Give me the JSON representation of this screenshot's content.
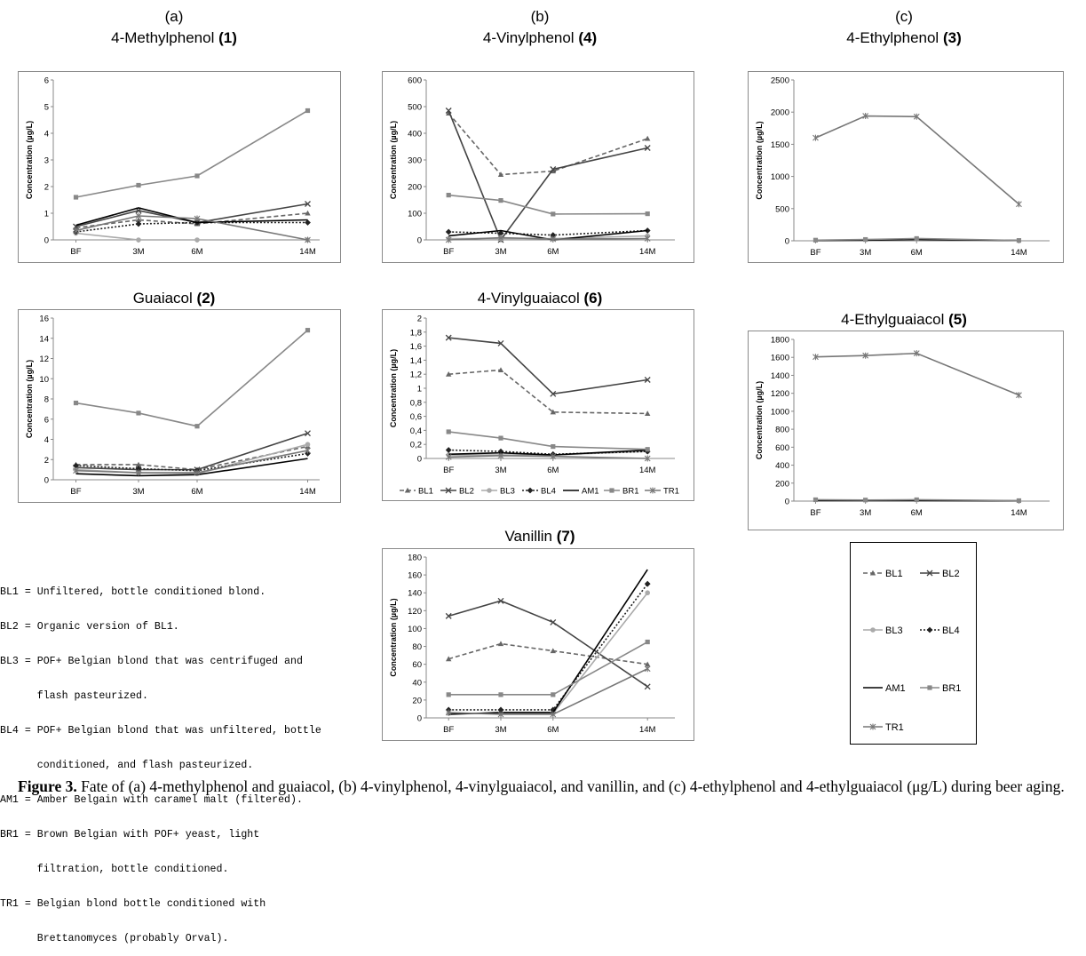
{
  "column_labels": [
    "(a)",
    "(b)",
    "(c)"
  ],
  "x_categories": [
    "BF",
    "3M",
    "6M",
    "14M"
  ],
  "y_label": "Concentration (µg/L)",
  "series_styles": {
    "BL1": {
      "color": "#666666",
      "dash": "5,3",
      "marker": "triangle"
    },
    "BL2": {
      "color": "#444444",
      "dash": "",
      "marker": "x"
    },
    "BL3": {
      "color": "#aaaaaa",
      "dash": "",
      "marker": "circle"
    },
    "BL4": {
      "color": "#222222",
      "dash": "2,2",
      "marker": "diamond"
    },
    "AM1": {
      "color": "#000000",
      "dash": "",
      "marker": "none"
    },
    "BR1": {
      "color": "#888888",
      "dash": "",
      "marker": "square"
    },
    "TR1": {
      "color": "#777777",
      "dash": "",
      "marker": "star"
    }
  },
  "legend": {
    "bottom_strip": [
      "BL1",
      "BL2",
      "BL3",
      "BL4",
      "AM1",
      "BR1",
      "TR1"
    ],
    "box": [
      "BL1",
      "BL2",
      "BL3",
      "BL4",
      "AM1",
      "BR1",
      "TR1"
    ]
  },
  "chart_data": [
    {
      "id": "c4mp",
      "type": "line",
      "title_name": "4-Methylphenol",
      "title_num": "(1)",
      "x": [
        "BF",
        "3M",
        "6M",
        "14M"
      ],
      "ylim": [
        0,
        6
      ],
      "yticks": [
        0,
        1,
        2,
        3,
        4,
        5,
        6
      ],
      "series": [
        {
          "name": "BL1",
          "values": [
            0.45,
            0.75,
            0.6,
            1.0
          ]
        },
        {
          "name": "BL2",
          "values": [
            0.5,
            1.1,
            0.65,
            1.35
          ]
        },
        {
          "name": "BL3",
          "values": [
            0.25,
            0.0,
            0.0,
            0.0
          ]
        },
        {
          "name": "BL4",
          "values": [
            0.3,
            0.6,
            0.65,
            0.65
          ]
        },
        {
          "name": "AM1",
          "values": [
            0.55,
            1.2,
            0.65,
            0.75
          ]
        },
        {
          "name": "BR1",
          "values": [
            1.6,
            2.05,
            2.4,
            4.85
          ]
        },
        {
          "name": "TR1",
          "values": [
            0.35,
            0.9,
            0.8,
            0.0
          ]
        }
      ]
    },
    {
      "id": "cgua",
      "type": "line",
      "title_name": "Guaiacol",
      "title_num": "(2)",
      "x": [
        "BF",
        "3M",
        "6M",
        "14M"
      ],
      "ylim": [
        0,
        16
      ],
      "yticks": [
        0,
        2,
        4,
        6,
        8,
        10,
        12,
        14,
        16
      ],
      "series": [
        {
          "name": "BL1",
          "values": [
            1.5,
            1.5,
            1.0,
            3.3
          ]
        },
        {
          "name": "BL2",
          "values": [
            1.2,
            1.0,
            1.0,
            4.6
          ]
        },
        {
          "name": "BL3",
          "values": [
            1.0,
            0.7,
            0.6,
            3.5
          ]
        },
        {
          "name": "BL4",
          "values": [
            1.4,
            1.1,
            0.9,
            2.6
          ]
        },
        {
          "name": "AM1",
          "values": [
            0.6,
            0.4,
            0.5,
            2.1
          ]
        },
        {
          "name": "BR1",
          "values": [
            7.6,
            6.6,
            5.3,
            14.8
          ]
        },
        {
          "name": "TR1",
          "values": [
            0.9,
            0.7,
            0.7,
            2.9
          ]
        }
      ]
    },
    {
      "id": "c4vp",
      "type": "line",
      "title_name": "4-Vinylphenol",
      "title_num": "(4)",
      "x": [
        "BF",
        "3M",
        "6M",
        "14M"
      ],
      "ylim": [
        0,
        600
      ],
      "yticks": [
        0,
        100,
        200,
        300,
        400,
        500,
        600
      ],
      "series": [
        {
          "name": "BL1",
          "values": [
            475,
            245,
            258,
            380
          ]
        },
        {
          "name": "BL2",
          "values": [
            485,
            0,
            265,
            345
          ]
        },
        {
          "name": "BL3",
          "values": [
            5,
            5,
            5,
            15
          ]
        },
        {
          "name": "BL4",
          "values": [
            30,
            25,
            18,
            35
          ]
        },
        {
          "name": "AM1",
          "values": [
            15,
            35,
            0,
            35
          ]
        },
        {
          "name": "BR1",
          "values": [
            168,
            148,
            97,
            98
          ]
        },
        {
          "name": "TR1",
          "values": [
            0,
            8,
            3,
            5
          ]
        }
      ]
    },
    {
      "id": "c4vg",
      "type": "line",
      "title_name": "4-Vinylguaiacol",
      "title_num": "(6)",
      "x": [
        "BF",
        "3M",
        "6M",
        "14M"
      ],
      "ylim": [
        0,
        2
      ],
      "yticks": [
        0,
        0.2,
        0.4,
        0.6,
        0.8,
        1.0,
        1.2,
        1.4,
        1.6,
        1.8,
        2.0
      ],
      "ytick_labels": [
        "0",
        "0,2",
        "0,4",
        "0,6",
        "0,8",
        "1",
        "1,2",
        "1,4",
        "1,6",
        "1,8",
        "2"
      ],
      "series": [
        {
          "name": "BL1",
          "values": [
            1.2,
            1.26,
            0.66,
            0.64
          ]
        },
        {
          "name": "BL2",
          "values": [
            1.72,
            1.64,
            0.92,
            1.12
          ]
        },
        {
          "name": "BL3",
          "values": [
            0.05,
            0.05,
            0.05,
            0.1
          ]
        },
        {
          "name": "BL4",
          "values": [
            0.12,
            0.1,
            0.06,
            0.1
          ]
        },
        {
          "name": "AM1",
          "values": [
            0.06,
            0.08,
            0.05,
            0.12
          ]
        },
        {
          "name": "BR1",
          "values": [
            0.38,
            0.29,
            0.17,
            0.13
          ]
        },
        {
          "name": "TR1",
          "values": [
            0.02,
            0.04,
            0.03,
            0.0
          ]
        }
      ]
    },
    {
      "id": "cvan",
      "type": "line",
      "title_name": "Vanillin",
      "title_num": "(7)",
      "x": [
        "BF",
        "3M",
        "6M",
        "14M"
      ],
      "ylim": [
        0,
        180
      ],
      "yticks": [
        0,
        20,
        40,
        60,
        80,
        100,
        120,
        140,
        160,
        180
      ],
      "series": [
        {
          "name": "BL1",
          "values": [
            66,
            83,
            75,
            60
          ]
        },
        {
          "name": "BL2",
          "values": [
            114,
            131,
            107,
            35
          ]
        },
        {
          "name": "BL3",
          "values": [
            5,
            5,
            5,
            140
          ]
        },
        {
          "name": "BL4",
          "values": [
            9,
            9,
            9,
            150
          ]
        },
        {
          "name": "AM1",
          "values": [
            4,
            6,
            6,
            166
          ]
        },
        {
          "name": "BR1",
          "values": [
            26,
            26,
            26,
            85
          ]
        },
        {
          "name": "TR1",
          "values": [
            6,
            4,
            4,
            55
          ]
        }
      ]
    },
    {
      "id": "c4ep",
      "type": "line",
      "title_name": "4-Ethylphenol",
      "title_num": "(3)",
      "x": [
        "BF",
        "3M",
        "6M",
        "14M"
      ],
      "ylim": [
        0,
        2500
      ],
      "yticks": [
        0,
        500,
        1000,
        1500,
        2000,
        2500
      ],
      "series": [
        {
          "name": "AM1",
          "values": [
            5,
            10,
            20,
            5
          ]
        },
        {
          "name": "BR1",
          "values": [
            10,
            20,
            35,
            5
          ]
        },
        {
          "name": "TR1",
          "values": [
            1600,
            1940,
            1930,
            570
          ]
        }
      ]
    },
    {
      "id": "c4eg",
      "type": "line",
      "title_name": "4-Ethylguaiacol",
      "title_num": "(5)",
      "x": [
        "BF",
        "3M",
        "6M",
        "14M"
      ],
      "ylim": [
        0,
        1800
      ],
      "yticks": [
        0,
        200,
        400,
        600,
        800,
        1000,
        1200,
        1400,
        1600,
        1800
      ],
      "series": [
        {
          "name": "AM1",
          "values": [
            5,
            5,
            5,
            3
          ]
        },
        {
          "name": "BR1",
          "values": [
            15,
            12,
            15,
            5
          ]
        },
        {
          "name": "TR1",
          "values": [
            1605,
            1620,
            1645,
            1180
          ]
        }
      ]
    }
  ],
  "definitions": [
    "BL1 = Unfiltered, bottle conditioned blond.",
    "BL2 = Organic version of BL1.",
    "BL3 = POF+ Belgian blond that was centrifuged and",
    "      flash pasteurized.",
    "BL4 = POF+ Belgian blond that was unfiltered, bottle",
    "      conditioned, and flash pasteurized.",
    "AM1 = Amber Belgain with caramel malt (filtered).",
    "BR1 = Brown Belgian with POF+ yeast, light",
    "      filtration, bottle conditioned.",
    "TR1 = Belgian blond bottle conditioned with",
    "      Brettanomyces (probably Orval)."
  ],
  "caption": {
    "label": "Figure 3.",
    "text": " Fate of (a) 4-methylphenol and guaiacol, (b) 4-vinylphenol, 4-vinylguaiacol, and vanillin, and (c) 4-ethylphenol and 4-ethylguaiacol (μg/L) during beer aging."
  }
}
